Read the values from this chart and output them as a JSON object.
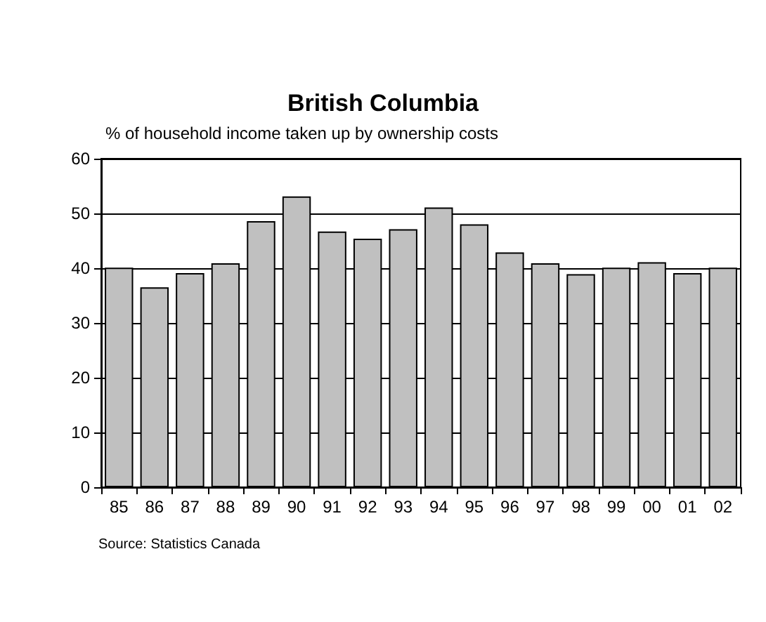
{
  "chart_data": {
    "type": "bar",
    "title": "British Columbia",
    "subtitle": "% of household income taken up by ownership costs",
    "categories": [
      "85",
      "86",
      "87",
      "88",
      "89",
      "90",
      "91",
      "92",
      "93",
      "94",
      "95",
      "96",
      "97",
      "98",
      "99",
      "00",
      "01",
      "02"
    ],
    "values": [
      40.1,
      36.5,
      39.1,
      40.9,
      48.6,
      53.1,
      46.7,
      45.4,
      47.1,
      51.1,
      48.0,
      42.9,
      40.9,
      38.9,
      40.1,
      41.1,
      39.1,
      40.1
    ],
    "color": "#c0c0c0",
    "ylim": [
      0,
      60
    ],
    "yticks": [
      0,
      10,
      20,
      30,
      40,
      50,
      60
    ],
    "grid": "y",
    "annotations": [
      "Source: Statistics Canada"
    ]
  }
}
